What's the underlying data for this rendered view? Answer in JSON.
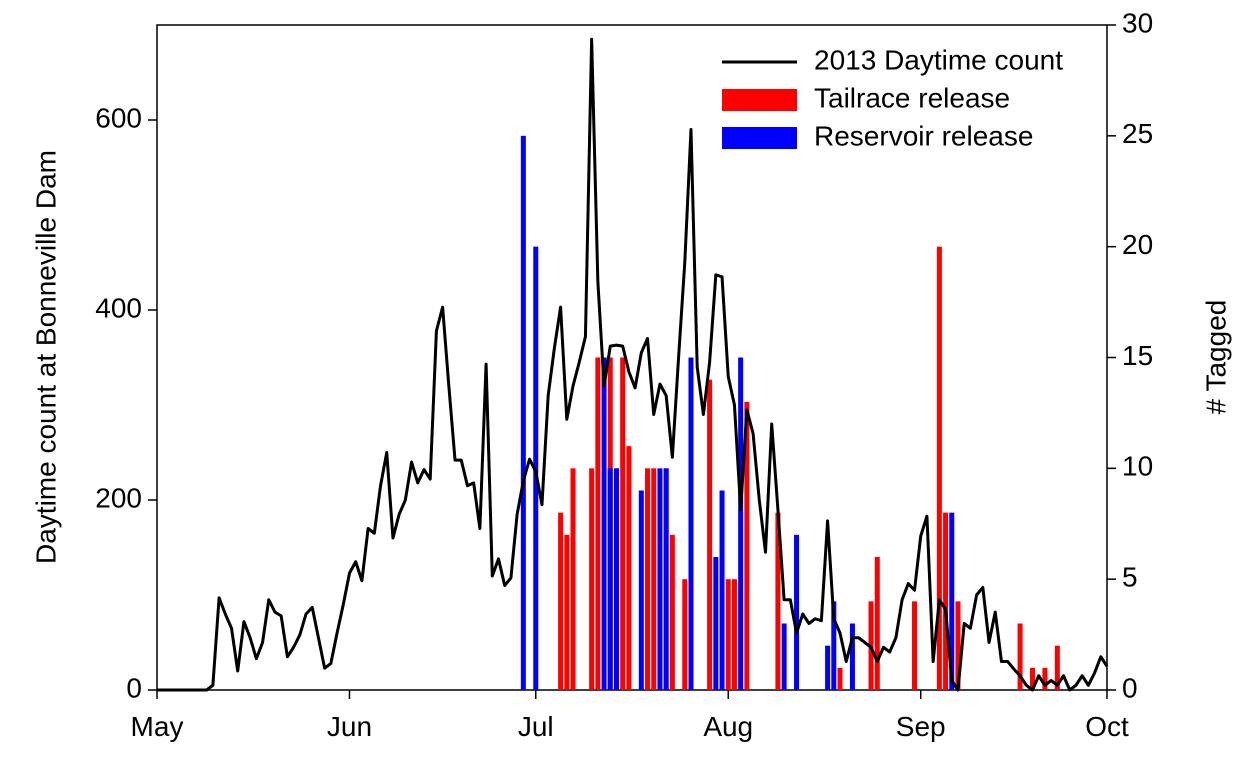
{
  "chart_data": {
    "type": "combo",
    "ylabel": "Daytime count at Bonneville Dam",
    "y2label": "# Tagged",
    "xlim": [
      0,
      153
    ],
    "xticks": [
      {
        "value": 0,
        "label": "May"
      },
      {
        "value": 31,
        "label": "Jun"
      },
      {
        "value": 61,
        "label": "Jul"
      },
      {
        "value": 92,
        "label": "Aug"
      },
      {
        "value": 123,
        "label": "Sep"
      },
      {
        "value": 153,
        "label": "Oct"
      }
    ],
    "ylim": [
      0,
      700
    ],
    "yticks": [
      0,
      200,
      400,
      600
    ],
    "y2lim": [
      0,
      30
    ],
    "y2ticks": [
      0,
      5,
      10,
      15,
      20,
      25,
      30
    ],
    "legend": "top-right",
    "series": [
      {
        "name": "2013 Daytime count",
        "type": "line",
        "color": "#000000",
        "x": [
          0,
          1,
          2,
          3,
          4,
          5,
          6,
          7,
          8,
          9,
          10,
          11,
          12,
          13,
          14,
          15,
          16,
          17,
          18,
          19,
          20,
          21,
          22,
          23,
          24,
          25,
          26,
          27,
          28,
          29,
          30,
          31,
          32,
          33,
          34,
          35,
          36,
          37,
          38,
          39,
          40,
          41,
          42,
          43,
          44,
          45,
          46,
          47,
          48,
          49,
          50,
          51,
          52,
          53,
          54,
          55,
          56,
          57,
          58,
          59,
          60,
          61,
          62,
          63,
          64,
          65,
          66,
          67,
          68,
          69,
          70,
          71,
          72,
          73,
          74,
          75,
          76,
          77,
          78,
          79,
          80,
          81,
          82,
          83,
          84,
          85,
          86,
          87,
          88,
          89,
          90,
          91,
          92,
          93,
          94,
          95,
          96,
          97,
          98,
          99,
          100,
          101,
          102,
          103,
          104,
          105,
          106,
          107,
          108,
          109,
          110,
          111,
          112,
          113,
          114,
          115,
          116,
          117,
          118,
          119,
          120,
          121,
          122,
          123,
          124,
          125,
          126,
          127,
          128,
          129,
          130,
          131,
          132,
          133,
          134,
          135,
          136,
          137,
          138,
          139,
          140,
          141,
          142,
          143,
          144,
          145,
          146,
          147,
          148,
          149,
          150,
          151,
          152,
          153
        ],
        "values": [
          0,
          0,
          0,
          0,
          0,
          0,
          0,
          0,
          0,
          5,
          97,
          80,
          65,
          20,
          72,
          55,
          33,
          50,
          95,
          82,
          78,
          35,
          45,
          58,
          80,
          87,
          55,
          23,
          28,
          60,
          90,
          123,
          135,
          115,
          170,
          165,
          215,
          250,
          160,
          185,
          200,
          240,
          218,
          232,
          222,
          378,
          403,
          320,
          242,
          242,
          215,
          218,
          170,
          343,
          120,
          138,
          110,
          118,
          185,
          220,
          243,
          230,
          195,
          310,
          360,
          403,
          285,
          320,
          345,
          372,
          685,
          430,
          320,
          362,
          363,
          362,
          335,
          318,
          355,
          370,
          290,
          322,
          310,
          245,
          350,
          450,
          590,
          340,
          290,
          345,
          437,
          435,
          330,
          300,
          190,
          295,
          270,
          200,
          145,
          280,
          190,
          95,
          95,
          60,
          80,
          70,
          75,
          73,
          178,
          75,
          60,
          30,
          55,
          55,
          50,
          45,
          30,
          45,
          40,
          55,
          95,
          112,
          105,
          162,
          183,
          30,
          95,
          85,
          10,
          0,
          70,
          65,
          100,
          108,
          50,
          82,
          30,
          30,
          22,
          15,
          5,
          0,
          15,
          5,
          10,
          5,
          15,
          0,
          5,
          15,
          5,
          18,
          35,
          25
        ]
      },
      {
        "name": "Tailrace release",
        "type": "bar",
        "axis": "y2",
        "color": "#ff0000",
        "x": [
          65,
          66,
          67,
          70,
          71,
          73,
          74,
          75,
          76,
          79,
          80,
          82,
          83,
          85,
          89,
          92,
          93,
          95,
          100,
          110,
          115,
          116,
          122,
          126,
          127,
          129,
          139,
          141,
          143,
          145
        ],
        "values": [
          8,
          7,
          10,
          10,
          15,
          15,
          10,
          15,
          11,
          10,
          10,
          10,
          7,
          5,
          14,
          5,
          5,
          13,
          8,
          1,
          4,
          6,
          4,
          20,
          8,
          4,
          3,
          1,
          1,
          2
        ]
      },
      {
        "name": "Reservoir release",
        "type": "bar",
        "axis": "y2",
        "color": "#0000ff",
        "x": [
          59,
          61,
          72,
          73,
          74,
          78,
          81,
          82,
          86,
          90,
          91,
          94,
          101,
          103,
          108,
          109,
          112,
          128
        ],
        "values": [
          25,
          20,
          15,
          10,
          10,
          9,
          10,
          10,
          15,
          6,
          9,
          15,
          3,
          7,
          2,
          4,
          3,
          8
        ]
      }
    ]
  }
}
